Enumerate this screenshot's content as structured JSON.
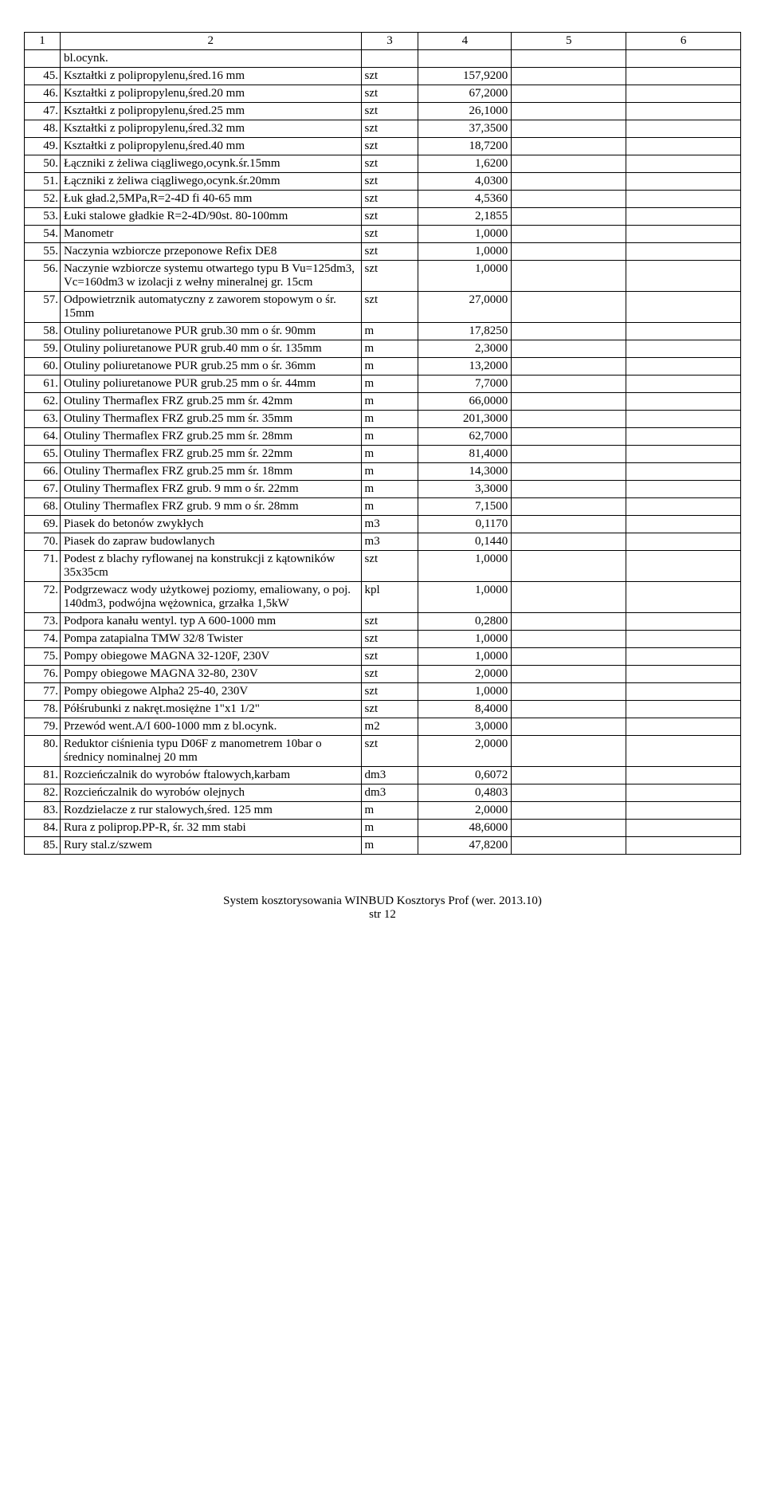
{
  "headers": [
    "1",
    "2",
    "3",
    "4",
    "5",
    "6"
  ],
  "rows": [
    {
      "n": "",
      "d": "bl.ocynk.",
      "u": "",
      "q": ""
    },
    {
      "n": "45.",
      "d": "Kształtki z polipropylenu,śred.16 mm",
      "u": "szt",
      "q": "157,9200"
    },
    {
      "n": "46.",
      "d": "Kształtki z polipropylenu,śred.20 mm",
      "u": "szt",
      "q": "67,2000"
    },
    {
      "n": "47.",
      "d": "Kształtki z polipropylenu,śred.25 mm",
      "u": "szt",
      "q": "26,1000"
    },
    {
      "n": "48.",
      "d": "Kształtki z polipropylenu,śred.32 mm",
      "u": "szt",
      "q": "37,3500"
    },
    {
      "n": "49.",
      "d": "Kształtki z polipropylenu,śred.40 mm",
      "u": "szt",
      "q": "18,7200"
    },
    {
      "n": "50.",
      "d": "Łączniki z żeliwa ciągliwego,ocynk.śr.15mm",
      "u": "szt",
      "q": "1,6200"
    },
    {
      "n": "51.",
      "d": "Łączniki z żeliwa ciągliwego,ocynk.śr.20mm",
      "u": "szt",
      "q": "4,0300"
    },
    {
      "n": "52.",
      "d": "Łuk gład.2,5MPa,R=2-4D fi 40-65 mm",
      "u": "szt",
      "q": "4,5360"
    },
    {
      "n": "53.",
      "d": "Łuki stalowe gładkie R=2-4D/90st. 80-100mm",
      "u": "szt",
      "q": "2,1855"
    },
    {
      "n": "54.",
      "d": "Manometr",
      "u": "szt",
      "q": "1,0000"
    },
    {
      "n": "55.",
      "d": "Naczynia wzbiorcze przeponowe Refix DE8",
      "u": "szt",
      "q": "1,0000"
    },
    {
      "n": "56.",
      "d": "Naczynie wzbiorcze systemu otwartego typu B Vu=125dm3, Vc=160dm3 w izolacji z wełny mineralnej gr. 15cm",
      "u": "szt",
      "q": "1,0000"
    },
    {
      "n": "57.",
      "d": "Odpowietrznik automatyczny z zaworem stopowym o śr. 15mm",
      "u": "szt",
      "q": "27,0000"
    },
    {
      "n": "58.",
      "d": "Otuliny poliuretanowe PUR grub.30 mm o śr. 90mm",
      "u": "m",
      "q": "17,8250"
    },
    {
      "n": "59.",
      "d": "Otuliny poliuretanowe PUR grub.40 mm o śr. 135mm",
      "u": "m",
      "q": "2,3000"
    },
    {
      "n": "60.",
      "d": "Otuliny poliuretanowe PUR grub.25 mm o śr. 36mm",
      "u": "m",
      "q": "13,2000"
    },
    {
      "n": "61.",
      "d": "Otuliny poliuretanowe PUR grub.25 mm o śr. 44mm",
      "u": "m",
      "q": "7,7000"
    },
    {
      "n": "62.",
      "d": "Otuliny Thermaflex FRZ grub.25 mm śr. 42mm",
      "u": "m",
      "q": "66,0000"
    },
    {
      "n": "63.",
      "d": "Otuliny Thermaflex FRZ grub.25 mm śr. 35mm",
      "u": "m",
      "q": "201,3000"
    },
    {
      "n": "64.",
      "d": "Otuliny Thermaflex FRZ grub.25 mm śr. 28mm",
      "u": "m",
      "q": "62,7000"
    },
    {
      "n": "65.",
      "d": "Otuliny Thermaflex FRZ grub.25 mm śr. 22mm",
      "u": "m",
      "q": "81,4000"
    },
    {
      "n": "66.",
      "d": "Otuliny Thermaflex FRZ grub.25 mm śr. 18mm",
      "u": "m",
      "q": "14,3000"
    },
    {
      "n": "67.",
      "d": "Otuliny Thermaflex FRZ grub. 9 mm o śr. 22mm",
      "u": "m",
      "q": "3,3000"
    },
    {
      "n": "68.",
      "d": "Otuliny Thermaflex FRZ grub. 9 mm o śr. 28mm",
      "u": "m",
      "q": "7,1500"
    },
    {
      "n": "69.",
      "d": "Piasek do betonów zwykłych",
      "u": "m3",
      "q": "0,1170"
    },
    {
      "n": "70.",
      "d": "Piasek do zapraw budowlanych",
      "u": "m3",
      "q": "0,1440"
    },
    {
      "n": "71.",
      "d": "Podest z blachy ryflowanej na konstrukcji z kątowników 35x35cm",
      "u": "szt",
      "q": "1,0000"
    },
    {
      "n": "72.",
      "d": "Podgrzewacz wody użytkowej poziomy, emaliowany, o poj. 140dm3, podwójna wężownica, grzałka 1,5kW",
      "u": "kpl",
      "q": "1,0000"
    },
    {
      "n": "73.",
      "d": "Podpora kanału wentyl. typ A 600-1000 mm",
      "u": "szt",
      "q": "0,2800"
    },
    {
      "n": "74.",
      "d": "Pompa zatapialna TMW 32/8 Twister",
      "u": "szt",
      "q": "1,0000"
    },
    {
      "n": "75.",
      "d": "Pompy obiegowe MAGNA 32-120F, 230V",
      "u": "szt",
      "q": "1,0000"
    },
    {
      "n": "76.",
      "d": "Pompy obiegowe MAGNA 32-80, 230V",
      "u": "szt",
      "q": "2,0000"
    },
    {
      "n": "77.",
      "d": "Pompy obiegowe Alpha2 25-40, 230V",
      "u": "szt",
      "q": "1,0000"
    },
    {
      "n": "78.",
      "d": "Półśrubunki z nakręt.mosiężne 1\"x1 1/2\"",
      "u": "szt",
      "q": "8,4000"
    },
    {
      "n": "79.",
      "d": "Przewód went.A/I 600-1000 mm z bl.ocynk.",
      "u": "m2",
      "q": "3,0000"
    },
    {
      "n": "80.",
      "d": "Reduktor ciśnienia typu D06F z manometrem 10bar o średnicy nominalnej 20 mm",
      "u": "szt",
      "q": "2,0000"
    },
    {
      "n": "81.",
      "d": "Rozcieńczalnik do wyrobów ftalowych,karbam",
      "u": "dm3",
      "q": "0,6072"
    },
    {
      "n": "82.",
      "d": "Rozcieńczalnik do wyrobów olejnych",
      "u": "dm3",
      "q": "0,4803"
    },
    {
      "n": "83.",
      "d": "Rozdzielacze z rur stalowych,śred. 125 mm",
      "u": "m",
      "q": "2,0000"
    },
    {
      "n": "84.",
      "d": "Rura z poliprop.PP-R, śr. 32 mm stabi",
      "u": "m",
      "q": "48,6000"
    },
    {
      "n": "85.",
      "d": "Rury stal.z/szwem",
      "u": "m",
      "q": "47,8200"
    }
  ],
  "footer": {
    "line1": "System kosztorysowania WINBUD Kosztorys Prof (wer. 2013.10)",
    "line2": "str 12"
  }
}
